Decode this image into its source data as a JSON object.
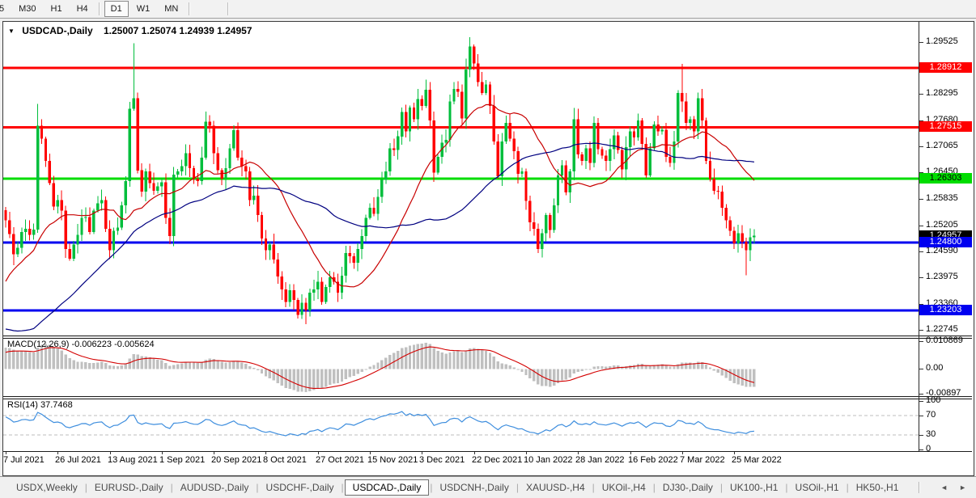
{
  "toolbar": {
    "timeframes": [
      {
        "label": "5",
        "active": false
      },
      {
        "label": "M30",
        "active": false
      },
      {
        "label": "H1",
        "active": false
      },
      {
        "label": "H4",
        "active": false
      },
      {
        "sep": true
      },
      {
        "label": "D1",
        "active": true
      },
      {
        "label": "W1",
        "active": false
      },
      {
        "label": "MN",
        "active": false
      },
      {
        "sep": true
      },
      {
        "space": true
      },
      {
        "sep": true
      }
    ]
  },
  "chart_header": {
    "symbol": "USDCAD-,Daily",
    "ohlc": "1.25007 1.25074 1.24939 1.24957",
    "dropdown_icon": "▼"
  },
  "chart_data": {
    "type": "candlestick",
    "symbol": "USDCAD-",
    "timeframe": "Daily",
    "ohlc_current": {
      "open": "1.25007",
      "high": "1.25074",
      "low": "1.24939",
      "close": "1.24957"
    },
    "candle_colors": {
      "up": "#00BE3C",
      "down": "#FF0000"
    },
    "price_axis_ticks": [
      {
        "label": "1.29525",
        "price": 1.29525
      },
      {
        "label": "1.28295",
        "price": 1.28295
      },
      {
        "label": "1.27680",
        "price": 1.2768
      },
      {
        "label": "1.27065",
        "price": 1.27065
      },
      {
        "label": "1.26450",
        "price": 1.2645
      },
      {
        "label": "1.25835",
        "price": 1.25835
      },
      {
        "label": "1.25205",
        "price": 1.25205
      },
      {
        "label": "1.24590",
        "price": 1.2459
      },
      {
        "label": "1.23975",
        "price": 1.23975
      },
      {
        "label": "1.23360",
        "price": 1.2336
      },
      {
        "label": "1.22745",
        "price": 1.22745
      }
    ],
    "price_range": {
      "top": 1.2998,
      "bottom": 1.2261
    },
    "horizontal_levels": [
      {
        "label": "1.28912",
        "price": 1.28912,
        "color": "#FF0000",
        "text_color": "#ffffff"
      },
      {
        "label": "1.27515",
        "price": 1.27515,
        "color": "#FF0000",
        "text_color": "#ffffff"
      },
      {
        "label": "1.26303",
        "price": 1.26303,
        "color": "#00DD00",
        "text_color": "#000000"
      },
      {
        "label": "1.24800",
        "price": 1.248,
        "color": "#0000F0",
        "text_color": "#ffffff"
      },
      {
        "label": "1.23203",
        "price": 1.23203,
        "color": "#0000F0",
        "text_color": "#ffffff"
      }
    ],
    "current_price_marker": {
      "label": "1.24957",
      "price": 1.24957,
      "bg": "#000000",
      "text_color": "#ffffff"
    },
    "x_labels": [
      "7 Jul 2021",
      "26 Jul 2021",
      "13 Aug 2021",
      "1 Sep 2021",
      "20 Sep 2021",
      "8 Oct 2021",
      "27 Oct 2021",
      "15 Nov 2021",
      "3 Dec 2021",
      "22 Dec 2021",
      "10 Jan 2022",
      "28 Jan 2022",
      "16 Feb 2022",
      "7 Mar 2022",
      "25 Mar 2022"
    ],
    "x_label_every_bars": 13,
    "moving_averages": [
      {
        "period": 20,
        "color": "#C80000"
      },
      {
        "period": 50,
        "color": "#000080"
      }
    ],
    "lead_in_closes": [
      1.261,
      1.2585,
      1.256,
      1.251,
      1.248,
      1.2455,
      1.242,
      1.238,
      1.234,
      1.23,
      1.226,
      1.2215,
      1.218,
      1.215,
      1.211,
      1.2085,
      1.2055,
      1.203,
      1.201,
      1.204,
      1.207,
      1.2055,
      1.2085,
      1.211,
      1.209,
      1.2065,
      1.2045,
      1.2075,
      1.206,
      1.2095,
      1.213,
      1.2175,
      1.222,
      1.228,
      1.233,
      1.231,
      1.2345,
      1.232,
      1.236,
      1.24,
      1.238,
      1.242,
      1.246,
      1.244,
      1.2415,
      1.239,
      1.244,
      1.2475,
      1.252,
      1.2556
    ],
    "closes": [
      1.2532,
      1.25,
      1.2452,
      1.2468,
      1.2505,
      1.2512,
      1.2498,
      1.251,
      1.2755,
      1.2725,
      1.2672,
      1.262,
      1.2565,
      1.258,
      1.2555,
      1.2465,
      1.2442,
      1.2475,
      1.2498,
      1.2538,
      1.254,
      1.2505,
      1.2555,
      1.2572,
      1.258,
      1.2512,
      1.2462,
      1.2508,
      1.2515,
      1.2568,
      1.2625,
      1.2795,
      1.282,
      1.265,
      1.26,
      1.2648,
      1.262,
      1.2602,
      1.2612,
      1.2622,
      1.2538,
      1.2495,
      1.264,
      1.2648,
      1.266,
      1.269,
      1.2655,
      1.263,
      1.2625,
      1.268,
      1.2765,
      1.2755,
      1.269,
      1.265,
      1.263,
      1.2655,
      1.2702,
      1.2745,
      1.268,
      1.266,
      1.2648,
      1.258,
      1.259,
      1.2545,
      1.249,
      1.2462,
      1.2475,
      1.244,
      1.24,
      1.237,
      1.234,
      1.2368,
      1.2345,
      1.231,
      1.2338,
      1.232,
      1.2362,
      1.237,
      1.2388,
      1.234,
      1.2375,
      1.2398,
      1.2388,
      1.2362,
      1.2402,
      1.2455,
      1.2448,
      1.2432,
      1.2465,
      1.2495,
      1.2538,
      1.2562,
      1.2548,
      1.2588,
      1.2628,
      1.2648,
      1.2702,
      1.2698,
      1.273,
      1.2788,
      1.2742,
      1.2798,
      1.277,
      1.2818,
      1.2802,
      1.284,
      1.2768,
      1.2645,
      1.2682,
      1.2715,
      1.2722,
      1.2812,
      1.2842,
      1.2835,
      1.2772,
      1.2888,
      1.2942,
      1.2902,
      1.2858,
      1.2832,
      1.2852,
      1.2802,
      1.2718,
      1.2636,
      1.2718,
      1.2762,
      1.2725,
      1.2695,
      1.2642,
      1.2648,
      1.2578,
      1.2528,
      1.2512,
      1.2465,
      1.2502,
      1.2545,
      1.251,
      1.2568,
      1.2638,
      1.2662,
      1.2598,
      1.2648,
      1.277,
      1.2688,
      1.2672,
      1.2702,
      1.2668,
      1.2762,
      1.27,
      1.2685,
      1.2672,
      1.27,
      1.2732,
      1.2698,
      1.2652,
      1.2705,
      1.2742,
      1.2728,
      1.2768,
      1.2712,
      1.2638,
      1.2702,
      1.2758,
      1.2742,
      1.2746,
      1.2682,
      1.2668,
      1.2718,
      1.2832,
      1.2812,
      1.2762,
      1.277,
      1.2742,
      1.282,
      1.2768,
      1.2672,
      1.263,
      1.2602,
      1.26,
      1.2562,
      1.2532,
      1.2508,
      1.2478,
      1.2502,
      1.2482,
      1.2462,
      1.2492,
      1.2496
    ],
    "wick_overrides": {
      "8": {
        "h": 1.2807
      },
      "32": {
        "h": 1.2949
      },
      "75": {
        "l": 1.2288
      },
      "116": {
        "h": 1.2964
      },
      "142": {
        "h": 1.2797
      },
      "169": {
        "h": 1.2901
      },
      "185": {
        "l": 1.2403
      }
    },
    "macd": {
      "label": "MACD(12,26,9) -0.006223 -0.005624",
      "params": [
        12,
        26,
        9
      ],
      "last_macd": -0.006223,
      "last_signal": -0.005624,
      "axis_labels": [
        "0.010869",
        "0.00",
        "-0.00897"
      ],
      "histogram_color": "#c0c0c0",
      "signal_color": "#D40000"
    },
    "rsi": {
      "label": "RSI(14) 37.7468",
      "period": 14,
      "last": 37.7468,
      "axis_labels": [
        100,
        70,
        30,
        0
      ],
      "guide_levels": [
        70,
        30
      ],
      "line_color": "#3E8EDE",
      "guide_color": "#bcbcbc"
    }
  },
  "tabs": {
    "items": [
      "USDX,Weekly",
      "EURUSD-,Daily",
      "AUDUSD-,Daily",
      "USDCHF-,Daily",
      "USDCAD-,Daily",
      "USDCNH-,Daily",
      "XAUUSD-,H4",
      "UKOil-,H4",
      "DJ30-,Daily",
      "UK100-,H1",
      "USOil-,H1",
      "HK50-,H1"
    ],
    "active": "USDCAD-,Daily",
    "scroll_left": "◄",
    "scroll_right": "►"
  }
}
